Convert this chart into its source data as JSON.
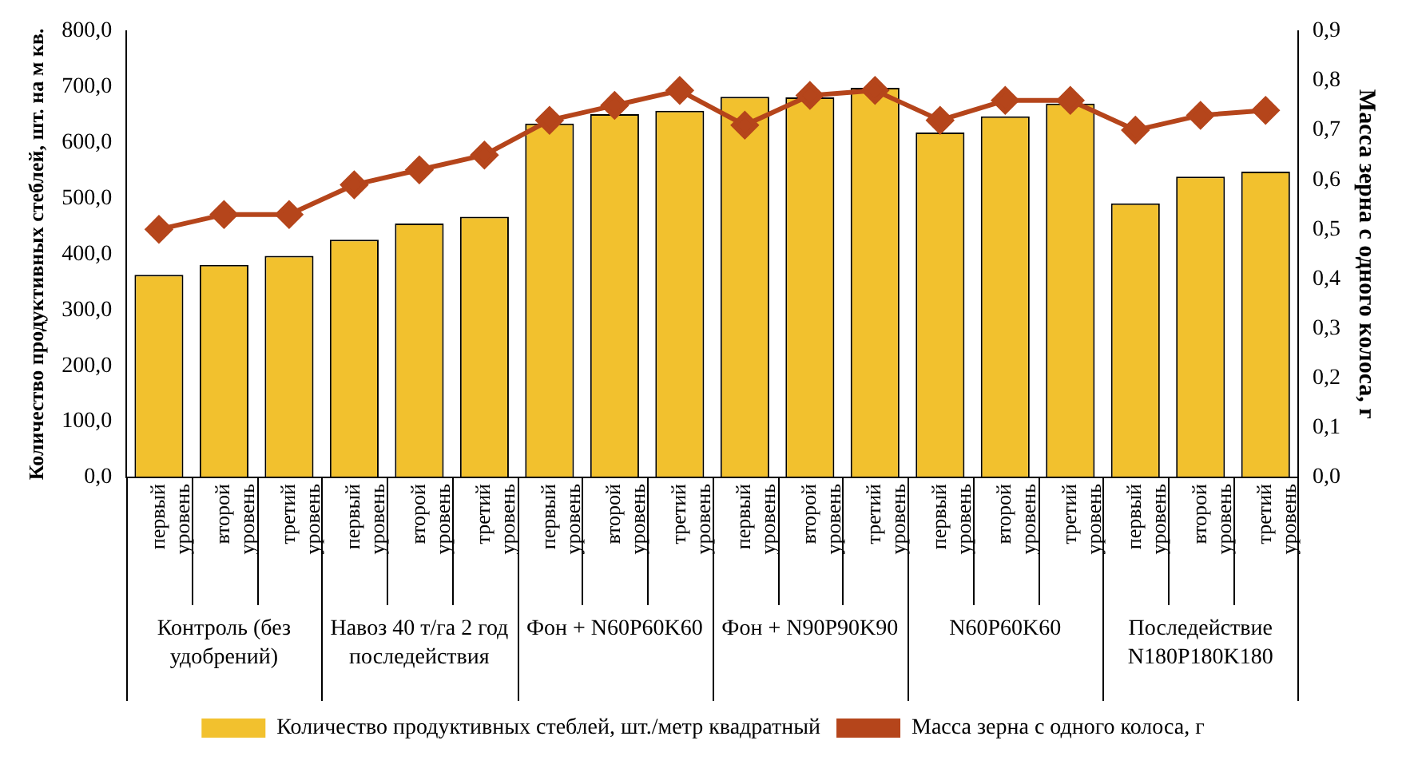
{
  "chart_data": {
    "type": "bar",
    "ylabel": "Количество продуктивных стеблей, шт. на м кв.",
    "y2label": "Масса зерна с одного колоса, г",
    "categories": [
      "первый уровень",
      "второй уровень",
      "третий уровень",
      "первый уровень",
      "второй уровень",
      "третий уровень",
      "первый уровень",
      "второй уровень",
      "третий уровень",
      "первый уровень",
      "второй уровень",
      "третий уровень",
      "первый уровень",
      "второй уровень",
      "третий уровень",
      "первый уровень",
      "второй уровень",
      "третий уровень"
    ],
    "series": [
      {
        "name": "Количество продуктивных стеблей, шт./метр квадратный",
        "color": "#f2c12e",
        "values": [
          363,
          381,
          397,
          426,
          455,
          467,
          634,
          651,
          657,
          682,
          681,
          698,
          618,
          647,
          670,
          491,
          539,
          548
        ]
      },
      {
        "name": "Масса зерна с одного колоса, г",
        "type": "line",
        "axis": "y2",
        "color": "#b5451b",
        "marker": "diamond",
        "values": [
          0.5,
          0.53,
          0.53,
          0.59,
          0.62,
          0.65,
          0.72,
          0.75,
          0.78,
          0.71,
          0.77,
          0.78,
          0.72,
          0.76,
          0.76,
          0.7,
          0.73,
          0.74
        ]
      }
    ],
    "annotations": [
      "Контроль (без удобрений)",
      "Навоз 40 т/га 2 год последействия",
      "Фон + N60P60K60",
      "Фон + N90P90K90",
      "N60P60K60",
      "Последействие N180P180K180"
    ],
    "ylim": [
      0,
      800
    ],
    "yticks": [
      {
        "value": 0,
        "label": "0,0"
      },
      {
        "value": 100,
        "label": "100,0"
      },
      {
        "value": 200,
        "label": "200,0"
      },
      {
        "value": 300,
        "label": "300,0"
      },
      {
        "value": 400,
        "label": "400,0"
      },
      {
        "value": 500,
        "label": "500,0"
      },
      {
        "value": 600,
        "label": "600,0"
      },
      {
        "value": 700,
        "label": "700,0"
      },
      {
        "value": 800,
        "label": "800,0"
      }
    ],
    "y2lim": [
      0,
      0.9
    ],
    "y2ticks": [
      {
        "value": 0,
        "label": "0,0"
      },
      {
        "value": 0.1,
        "label": "0,1"
      },
      {
        "value": 0.2,
        "label": "0,2"
      },
      {
        "value": 0.3,
        "label": "0,3"
      },
      {
        "value": 0.4,
        "label": "0,4"
      },
      {
        "value": 0.5,
        "label": "0,5"
      },
      {
        "value": 0.6,
        "label": "0,6"
      },
      {
        "value": 0.7,
        "label": "0,7"
      },
      {
        "value": 0.8,
        "label": "0,8"
      },
      {
        "value": 0.9,
        "label": "0,9"
      }
    ],
    "grid": false,
    "legend": "bottom"
  }
}
